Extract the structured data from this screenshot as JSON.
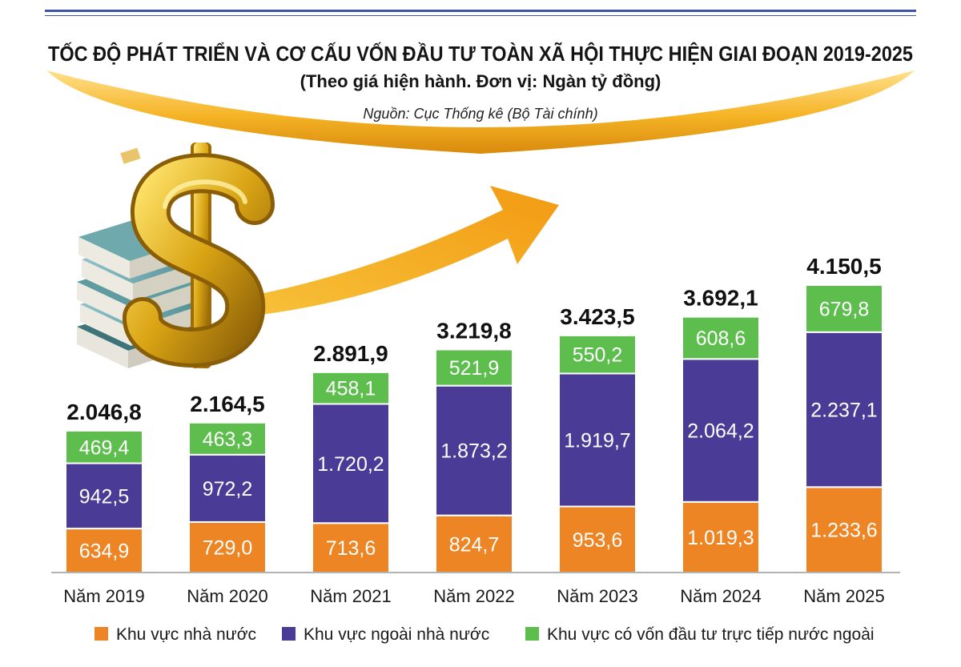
{
  "chart_data": {
    "type": "bar",
    "stacked": true,
    "title": "TỐC ĐỘ PHÁT TRIỂN VÀ CƠ CẤU VỐN ĐẦU TƯ TOÀN XÃ HỘI THỰC HIỆN GIAI ĐOẠN 2019-2025",
    "subtitle": "(Theo giá hiện hành. Đơn vị: Ngàn tỷ đồng)",
    "source": "Nguồn: Cục Thống kê (Bộ Tài chính)",
    "categories": [
      "Năm 2019",
      "Năm 2020",
      "Năm 2021",
      "Năm 2022",
      "Năm 2023",
      "Năm 2024",
      "Năm 2025"
    ],
    "series": [
      {
        "name": "Khu vực nhà nước",
        "color": "#ED8524",
        "values": [
          634.9,
          729.0,
          713.6,
          824.7,
          953.6,
          1019.3,
          1233.6
        ],
        "labels": [
          "634,9",
          "729,0",
          "713,6",
          "824,7",
          "953,6",
          "1.019,3",
          "1.233,6"
        ]
      },
      {
        "name": "Khu vực ngoài nhà nước",
        "color": "#4A3C96",
        "values": [
          942.5,
          972.2,
          1720.2,
          1873.2,
          1919.7,
          2064.2,
          2237.1
        ],
        "labels": [
          "942,5",
          "972,2",
          "1.720,2",
          "1.873,2",
          "1.919,7",
          "2.064,2",
          "2.237,1"
        ]
      },
      {
        "name": "Khu vực có vốn đầu tư trực tiếp nước ngoài",
        "color": "#5DBE4E",
        "values": [
          469.4,
          463.3,
          458.1,
          521.9,
          550.2,
          608.6,
          679.8
        ],
        "labels": [
          "469,4",
          "463,3",
          "458,1",
          "521,9",
          "550,2",
          "608,6",
          "679,8"
        ]
      }
    ],
    "totals": [
      2046.8,
      2164.5,
      2891.9,
      3219.8,
      3423.5,
      3692.1,
      4150.5
    ],
    "total_labels": [
      "2.046,8",
      "2.164,5",
      "2.891,9",
      "3.219,8",
      "3.423,5",
      "3.692,1",
      "4.150,5"
    ],
    "ylim": [
      0,
      4150.5
    ],
    "grid": false,
    "legend_placement": "bottom"
  },
  "decor": {
    "accent_blue": "#3E55A6",
    "swoosh_gold": "#F2A71B",
    "icons": [
      "dollar-sign-icon",
      "banknote-stack-icon",
      "growth-arrow-icon"
    ]
  }
}
